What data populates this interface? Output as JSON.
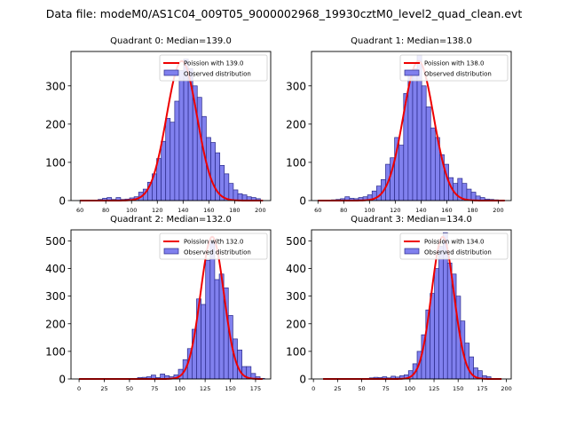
{
  "figure_title": "Data file: modeM0/AS1C04_009T05_9000002968_19930cztM0_level2_quad_clean.evt",
  "chart_data": [
    {
      "type": "bar",
      "title": "Quadrant 0: Median=139.0",
      "xlabel": "",
      "ylabel": "",
      "xlim": [
        53,
        208
      ],
      "ylim": [
        0,
        390
      ],
      "xticks": [
        60,
        80,
        100,
        120,
        140,
        160,
        180,
        200
      ],
      "yticks": [
        0,
        100,
        200,
        300
      ],
      "bin_width": 3.5,
      "bins": [
        [
          60,
          1
        ],
        [
          63.5,
          1
        ],
        [
          67,
          1
        ],
        [
          70.5,
          1
        ],
        [
          74,
          3
        ],
        [
          77.5,
          6
        ],
        [
          81,
          8
        ],
        [
          84.5,
          3
        ],
        [
          88,
          8
        ],
        [
          91.5,
          3
        ],
        [
          95,
          4
        ],
        [
          98.5,
          7
        ],
        [
          102,
          10
        ],
        [
          105.5,
          22
        ],
        [
          109,
          30
        ],
        [
          112.5,
          48
        ],
        [
          116,
          70
        ],
        [
          119.5,
          110
        ],
        [
          123,
          155
        ],
        [
          126.5,
          215
        ],
        [
          130,
          205
        ],
        [
          133.5,
          260
        ],
        [
          137,
          340
        ],
        [
          140.5,
          370
        ],
        [
          144,
          345
        ],
        [
          147.5,
          300
        ],
        [
          151,
          270
        ],
        [
          154.5,
          220
        ],
        [
          158,
          165
        ],
        [
          161.5,
          152
        ],
        [
          165,
          125
        ],
        [
          168.5,
          92
        ],
        [
          172,
          70
        ],
        [
          175.5,
          45
        ],
        [
          179,
          28
        ],
        [
          182.5,
          18
        ],
        [
          186,
          15
        ],
        [
          189.5,
          10
        ],
        [
          193,
          8
        ],
        [
          196.5,
          5
        ]
      ],
      "fit": {
        "mean": 139.0,
        "sigma": 11.79,
        "amplitude": 365,
        "x_range": [
          60,
          202
        ]
      },
      "legend": {
        "position": "top-right",
        "fit_label": "Poission with 139.0",
        "hist_label": "Observed distribution"
      },
      "colors": {
        "fit": "#ee0000",
        "bar_fill": "#8080ee",
        "bar_edge": "#2a2a8a"
      }
    },
    {
      "type": "bar",
      "title": "Quadrant 1: Median=138.0",
      "xlabel": "",
      "ylabel": "",
      "xlim": [
        55,
        210
      ],
      "ylim": [
        0,
        390
      ],
      "xticks": [
        60,
        80,
        100,
        120,
        140,
        160,
        180,
        200
      ],
      "yticks": [
        0,
        100,
        200,
        300
      ],
      "bin_width": 3.5,
      "bins": [
        [
          60,
          1
        ],
        [
          63.5,
          1
        ],
        [
          67,
          1
        ],
        [
          70.5,
          2
        ],
        [
          74,
          3
        ],
        [
          77.5,
          5
        ],
        [
          81,
          10
        ],
        [
          84.5,
          6
        ],
        [
          88,
          5
        ],
        [
          91.5,
          8
        ],
        [
          95,
          10
        ],
        [
          98.5,
          15
        ],
        [
          102,
          25
        ],
        [
          105.5,
          38
        ],
        [
          109,
          55
        ],
        [
          112.5,
          95
        ],
        [
          116,
          112
        ],
        [
          119.5,
          165
        ],
        [
          123,
          145
        ],
        [
          126.5,
          280
        ],
        [
          130,
          330
        ],
        [
          133.5,
          345
        ],
        [
          137,
          380
        ],
        [
          140.5,
          300
        ],
        [
          144,
          245
        ],
        [
          147.5,
          190
        ],
        [
          151,
          165
        ],
        [
          154.5,
          120
        ],
        [
          158,
          95
        ],
        [
          161.5,
          60
        ],
        [
          165,
          45
        ],
        [
          168.5,
          58
        ],
        [
          172,
          45
        ],
        [
          175.5,
          30
        ],
        [
          179,
          22
        ],
        [
          182.5,
          12
        ],
        [
          186,
          8
        ],
        [
          189.5,
          4
        ],
        [
          193,
          3
        ],
        [
          196.5,
          2
        ]
      ],
      "fit": {
        "mean": 138.0,
        "sigma": 11.75,
        "amplitude": 365,
        "x_range": [
          60,
          205
        ]
      },
      "legend": {
        "position": "top-right",
        "fit_label": "Poission with 138.0",
        "hist_label": "Observed distribution"
      },
      "colors": {
        "fit": "#ee0000",
        "bar_fill": "#8080ee",
        "bar_edge": "#2a2a8a"
      }
    },
    {
      "type": "bar",
      "title": "Quadrant 2: Median=132.0",
      "xlabel": "",
      "ylabel": "",
      "xlim": [
        -8,
        190
      ],
      "ylim": [
        0,
        540
      ],
      "xticks": [
        0,
        25,
        50,
        75,
        100,
        125,
        150,
        175
      ],
      "yticks": [
        0,
        100,
        200,
        300,
        400,
        500
      ],
      "bin_width": 4.5,
      "bins": [
        [
          58,
          5
        ],
        [
          62.5,
          6
        ],
        [
          67,
          8
        ],
        [
          71.5,
          14
        ],
        [
          76,
          5
        ],
        [
          80.5,
          18
        ],
        [
          85,
          12
        ],
        [
          89.5,
          8
        ],
        [
          94,
          15
        ],
        [
          98.5,
          35
        ],
        [
          103,
          70
        ],
        [
          107.5,
          110
        ],
        [
          112,
          180
        ],
        [
          116.5,
          290
        ],
        [
          121,
          270
        ],
        [
          125.5,
          430
        ],
        [
          130,
          500
        ],
        [
          134.5,
          360
        ],
        [
          139,
          380
        ],
        [
          143.5,
          330
        ],
        [
          148,
          230
        ],
        [
          152.5,
          145
        ],
        [
          157,
          105
        ],
        [
          161.5,
          45
        ],
        [
          166,
          45
        ],
        [
          170.5,
          20
        ],
        [
          175,
          8
        ],
        [
          179.5,
          2
        ]
      ],
      "fit": {
        "mean": 132.0,
        "sigma": 11.49,
        "amplitude": 515,
        "x_range": [
          0,
          182
        ]
      },
      "legend": {
        "position": "top-right",
        "fit_label": "Poission with 132.0",
        "hist_label": "Observed distribution"
      },
      "colors": {
        "fit": "#ee0000",
        "bar_fill": "#8080ee",
        "bar_edge": "#2a2a8a"
      }
    },
    {
      "type": "bar",
      "title": "Quadrant 3: Median=134.0",
      "xlabel": "",
      "ylabel": "",
      "xlim": [
        -2,
        205
      ],
      "ylim": [
        0,
        540
      ],
      "xticks": [
        0,
        25,
        50,
        75,
        100,
        125,
        150,
        175,
        200
      ],
      "yticks": [
        0,
        100,
        200,
        300,
        400,
        500
      ],
      "bin_width": 4.5,
      "bins": [
        [
          58,
          4
        ],
        [
          62.5,
          6
        ],
        [
          67,
          5
        ],
        [
          71.5,
          8
        ],
        [
          76,
          4
        ],
        [
          80.5,
          10
        ],
        [
          85,
          7
        ],
        [
          89.5,
          12
        ],
        [
          94,
          15
        ],
        [
          98.5,
          30
        ],
        [
          103,
          55
        ],
        [
          107.5,
          100
        ],
        [
          112,
          160
        ],
        [
          116.5,
          250
        ],
        [
          121,
          310
        ],
        [
          125.5,
          400
        ],
        [
          130,
          480
        ],
        [
          134.5,
          530
        ],
        [
          139,
          420
        ],
        [
          143.5,
          380
        ],
        [
          148,
          300
        ],
        [
          152.5,
          210
        ],
        [
          157,
          130
        ],
        [
          161.5,
          80
        ],
        [
          166,
          40
        ],
        [
          170.5,
          30
        ],
        [
          175,
          12
        ],
        [
          179.5,
          8
        ]
      ],
      "fit": {
        "mean": 134.0,
        "sigma": 11.58,
        "amplitude": 515,
        "x_range": [
          10,
          195
        ]
      },
      "legend": {
        "position": "top-right",
        "fit_label": "Poission with 134.0",
        "hist_label": "Observed distribution"
      },
      "colors": {
        "fit": "#ee0000",
        "bar_fill": "#8080ee",
        "bar_edge": "#2a2a8a"
      }
    }
  ]
}
